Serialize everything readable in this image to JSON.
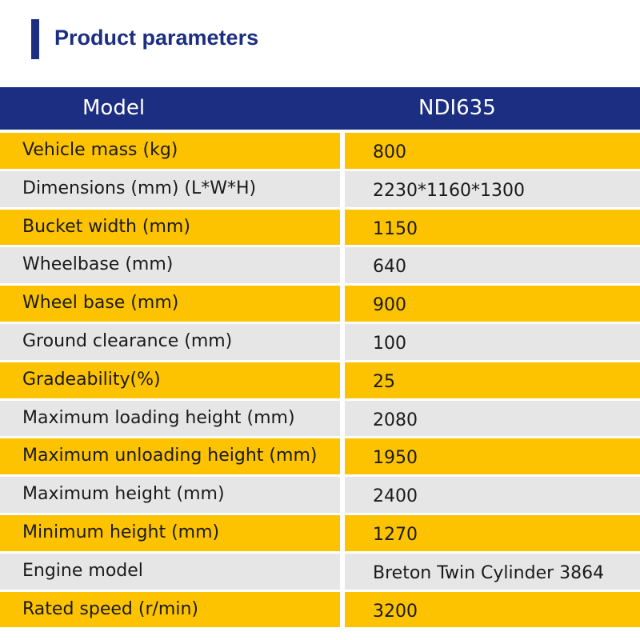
{
  "title": "Product parameters",
  "colors": {
    "brand_blue": "#1c2e82",
    "row_yellow": "#fdc300",
    "row_gray": "#e6e6e6"
  },
  "header": {
    "label": "Model",
    "value": "NDI635"
  },
  "rows": [
    {
      "label": "Vehicle mass (kg)",
      "value": "800"
    },
    {
      "label": "Dimensions (mm) (L*W*H)",
      "value": "2230*1160*1300"
    },
    {
      "label": "Bucket width (mm)",
      "value": "1150"
    },
    {
      "label": "Wheelbase (mm)",
      "value": "640"
    },
    {
      "label": "Wheel base (mm)",
      "value": "900"
    },
    {
      "label": "Ground clearance (mm)",
      "value": "100"
    },
    {
      "label": "Gradeability(%)",
      "value": "25"
    },
    {
      "label": "Maximum loading height (mm)",
      "value": "2080"
    },
    {
      "label": "Maximum unloading height (mm)",
      "value": "1950"
    },
    {
      "label": "Maximum height (mm)",
      "value": "2400"
    },
    {
      "label": "Minimum height (mm)",
      "value": "1270"
    },
    {
      "label": "Engine model",
      "value": "Breton Twin Cylinder 3864"
    },
    {
      "label": "Rated speed (r/min)",
      "value": "3200"
    }
  ]
}
